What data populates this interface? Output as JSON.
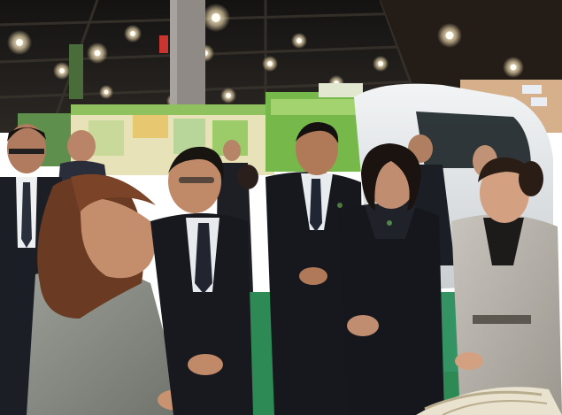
{
  "photo": {
    "subject": "",
    "colors": {
      "ceiling": "#1c1a19",
      "carpet": "#2e8a55",
      "suit_dark": "#17191f",
      "suit_gray": "#8b8f88",
      "skin": "#c99372",
      "hair": "#1a1412",
      "booth_green": "#76b84a",
      "van_white": "#e8ebec"
    }
  }
}
